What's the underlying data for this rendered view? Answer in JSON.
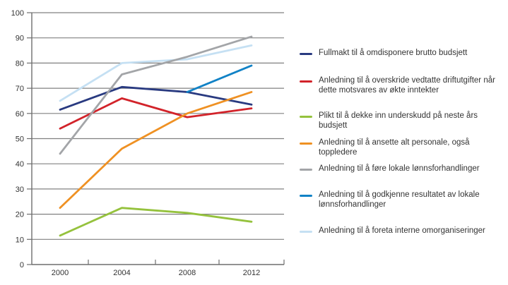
{
  "chart_data": {
    "type": "line",
    "title": "",
    "xlabel": "",
    "ylabel": "",
    "x_labels": [
      "2000",
      "2004",
      "2008",
      "2012"
    ],
    "y_ticks": [
      0,
      10,
      20,
      30,
      40,
      50,
      60,
      70,
      80,
      90,
      100
    ],
    "ylim": [
      0,
      100
    ],
    "grid": "horizontal",
    "legend_position": "right",
    "series": [
      {
        "name": "Fullmakt til å omdisponere brutto budsjett",
        "color": "#293A80",
        "values": [
          61.5,
          70.5,
          68.5,
          63.5
        ]
      },
      {
        "name": "Anledning til å overskride vedtatte driftutgifter når dette motsvares av økte inntekter",
        "color": "#D2232A",
        "values": [
          54,
          66,
          58.5,
          62
        ]
      },
      {
        "name": "Plikt til å dekke inn underskudd på neste års budsjett",
        "color": "#95C23D",
        "values": [
          11.5,
          22.5,
          20.5,
          17
        ]
      },
      {
        "name": "Anledning til å ansette alt personale, også toppledere",
        "color": "#EF9123",
        "values": [
          22.5,
          46,
          60,
          68.5
        ]
      },
      {
        "name": "Anledning til å føre lokale lønnsforhandlinger",
        "color": "#A3A5A8",
        "values": [
          44,
          75.5,
          82.5,
          90.5
        ]
      },
      {
        "name": "Anledning til å godkjenne resultatet av lokale lønnsforhandlinger",
        "color": "#1182C6",
        "values": [
          null,
          null,
          68.5,
          79
        ]
      },
      {
        "name": "Anledning til å foreta interne omorganiseringer",
        "color": "#C5E0F3",
        "values": [
          65,
          80,
          81.5,
          87
        ]
      }
    ]
  },
  "style_colors": {
    "grid": "#808080",
    "axis": "#6E6E6E",
    "text": "#333333",
    "background": "#FFFFFF"
  }
}
